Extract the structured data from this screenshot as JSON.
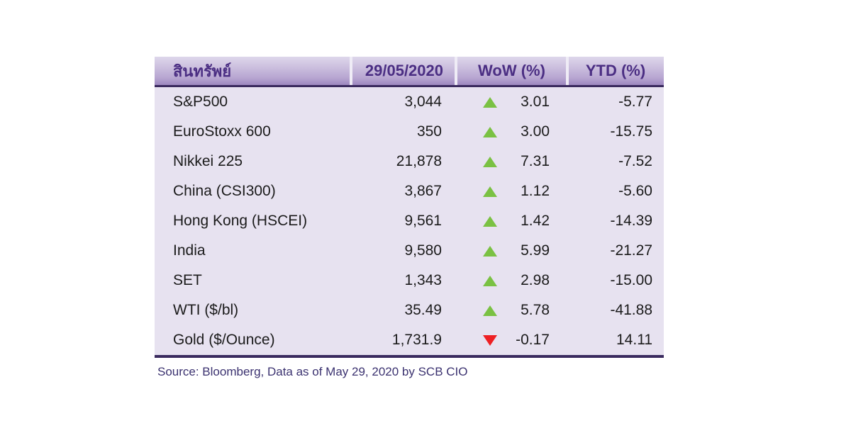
{
  "chart_data": {
    "type": "table",
    "columns": [
      "สินทรัพย์",
      "29/05/2020",
      "WoW (%)",
      "YTD (%)"
    ],
    "rows": [
      {
        "asset": "S&P500",
        "value": "3,044",
        "wow": "3.01",
        "wow_direction": "up",
        "ytd": "-5.77"
      },
      {
        "asset": "EuroStoxx 600",
        "value": "350",
        "wow": "3.00",
        "wow_direction": "up",
        "ytd": "-15.75"
      },
      {
        "asset": "Nikkei 225",
        "value": "21,878",
        "wow": "7.31",
        "wow_direction": "up",
        "ytd": "-7.52"
      },
      {
        "asset": "China (CSI300)",
        "value": "3,867",
        "wow": "1.12",
        "wow_direction": "up",
        "ytd": "-5.60"
      },
      {
        "asset": "Hong Kong (HSCEI)",
        "value": "9,561",
        "wow": "1.42",
        "wow_direction": "up",
        "ytd": "-14.39"
      },
      {
        "asset": "India",
        "value": "9,580",
        "wow": "5.99",
        "wow_direction": "up",
        "ytd": "-21.27"
      },
      {
        "asset": "SET",
        "value": "1,343",
        "wow": "2.98",
        "wow_direction": "up",
        "ytd": "-15.00"
      },
      {
        "asset": "WTI ($/bl)",
        "value": "35.49",
        "wow": "5.78",
        "wow_direction": "up",
        "ytd": "-41.88"
      },
      {
        "asset": "Gold ($/Ounce)",
        "value": "1,731.9",
        "wow": "-0.17",
        "wow_direction": "down",
        "ytd": "14.11"
      }
    ],
    "source": "Source: Bloomberg, Data as of May 29, 2020 by SCB CIO",
    "legend_position": "none",
    "grid": false
  },
  "colors": {
    "header_text": "#4b2e83",
    "header_gradient_top": "#ded7eb",
    "header_gradient_bottom": "#9d87c0",
    "table_rule": "#3a2a5e",
    "body_background": "#e7e2f0",
    "body_text": "#1b1b1b",
    "up_green": "#7ac143",
    "down_red": "#ee2024",
    "source_text": "#3b3270"
  }
}
